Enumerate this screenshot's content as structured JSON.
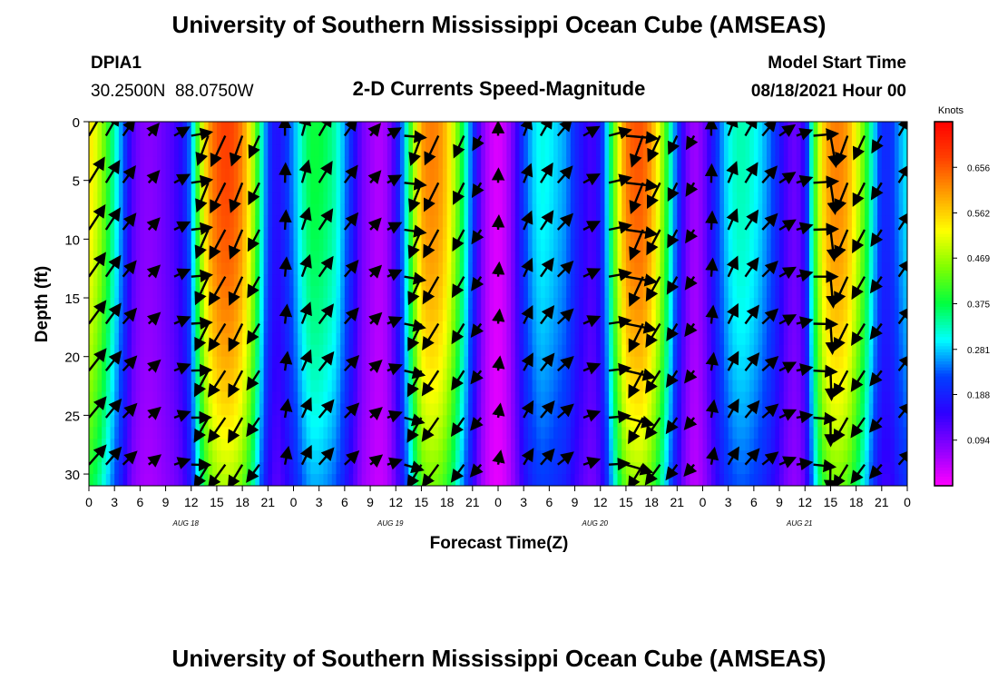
{
  "header": {
    "title": "University of Southern Mississippi Ocean Cube (AMSEAS)",
    "station_id": "DPIA1",
    "station_coords": "30.2500N  88.0750W",
    "product": "2-D Currents Speed-Magnitude",
    "model_start_label": "Model Start Time",
    "model_start_value": "08/18/2021 Hour 00"
  },
  "footer": {
    "title": "University of Southern Mississippi Ocean Cube (AMSEAS)"
  },
  "chart_data": {
    "type": "heatmap",
    "title": "2-D Currents Speed-Magnitude",
    "xlabel": "Forecast Time(Z)",
    "ylabel": "Depth (ft)",
    "x_tick_labels": [
      "0",
      "3",
      "6",
      "9",
      "12",
      "15",
      "18",
      "21",
      "0",
      "3",
      "6",
      "9",
      "12",
      "15",
      "18",
      "21",
      "0",
      "3",
      "6",
      "9",
      "12",
      "15",
      "18",
      "21",
      "0",
      "3",
      "6",
      "9",
      "12",
      "15",
      "18",
      "21",
      "0"
    ],
    "x_range_hours": [
      0,
      96
    ],
    "date_labels": [
      "AUG 18",
      "AUG 19",
      "AUG 20",
      "AUG 21"
    ],
    "y_ticks": [
      0,
      5,
      10,
      15,
      20,
      25,
      30
    ],
    "ylim": [
      0,
      31
    ],
    "y_inverted": true,
    "colorbar": {
      "unit": "Knots",
      "tick_labels": [
        "0.656",
        "0.562",
        "0.469",
        "0.375",
        "0.281",
        "0.188",
        "0.094"
      ],
      "ticks": [
        0.656,
        0.562,
        0.469,
        0.375,
        0.281,
        0.188,
        0.094
      ],
      "range": [
        0.0,
        0.75
      ],
      "colors": [
        "#ff00ff",
        "#8f00ff",
        "#2d00ff",
        "#0040ff",
        "#00ffff",
        "#00ff40",
        "#80ff00",
        "#ffff00",
        "#ffa000",
        "#ff4000",
        "#ff0000"
      ]
    },
    "speed_profile": {
      "hours": [
        0,
        1,
        2,
        3,
        4,
        5,
        6,
        7,
        8,
        9,
        10,
        11,
        12,
        13,
        14,
        15,
        16,
        17,
        18,
        19,
        20,
        21,
        22,
        23,
        24,
        25,
        26,
        27,
        28,
        29,
        30,
        31,
        32,
        33,
        34,
        35,
        36,
        37,
        38,
        39,
        40,
        41,
        42,
        43,
        44,
        45,
        46,
        47,
        48,
        49,
        50,
        51,
        52,
        53,
        54,
        55,
        56,
        57,
        58,
        59,
        60,
        61,
        62,
        63,
        64,
        65,
        66,
        67,
        68,
        69,
        70,
        71,
        72,
        73,
        74,
        75,
        76,
        77,
        78,
        79,
        80,
        81,
        82,
        83,
        84,
        85,
        86,
        87,
        88,
        89,
        90,
        91,
        92,
        93,
        94,
        95,
        96
      ],
      "surface_knots": [
        0.55,
        0.5,
        0.42,
        0.33,
        0.24,
        0.13,
        0.09,
        0.08,
        0.09,
        0.11,
        0.13,
        0.17,
        0.26,
        0.46,
        0.6,
        0.66,
        0.68,
        0.67,
        0.62,
        0.52,
        0.36,
        0.22,
        0.16,
        0.2,
        0.26,
        0.33,
        0.38,
        0.38,
        0.36,
        0.33,
        0.26,
        0.18,
        0.1,
        0.07,
        0.05,
        0.07,
        0.15,
        0.28,
        0.45,
        0.6,
        0.63,
        0.62,
        0.57,
        0.47,
        0.35,
        0.22,
        0.1,
        0.04,
        0.02,
        0.05,
        0.12,
        0.22,
        0.28,
        0.31,
        0.3,
        0.28,
        0.26,
        0.2,
        0.16,
        0.13,
        0.18,
        0.32,
        0.5,
        0.63,
        0.66,
        0.66,
        0.6,
        0.5,
        0.36,
        0.22,
        0.11,
        0.06,
        0.09,
        0.16,
        0.24,
        0.3,
        0.33,
        0.33,
        0.31,
        0.28,
        0.24,
        0.18,
        0.12,
        0.1,
        0.16,
        0.38,
        0.55,
        0.62,
        0.63,
        0.6,
        0.52,
        0.42,
        0.3,
        0.2,
        0.2,
        0.26,
        0.3
      ],
      "bottom_factor": 0.7
    },
    "vectors": {
      "hours": [
        0,
        2,
        4,
        7,
        10,
        12,
        14,
        16,
        18,
        20,
        23,
        25,
        27,
        30,
        33,
        35,
        37,
        39,
        41,
        44,
        46,
        48,
        51,
        53,
        55,
        58,
        61,
        63,
        65,
        67,
        69,
        71,
        73,
        75,
        77,
        79,
        81,
        83,
        85,
        87,
        89,
        91,
        93,
        95
      ],
      "depths_ft": [
        0,
        4,
        8,
        12,
        16,
        20,
        24,
        28
      ],
      "direction_deg_surface": [
        30,
        30,
        35,
        40,
        60,
        80,
        200,
        205,
        200,
        205,
        0,
        15,
        30,
        35,
        40,
        60,
        95,
        200,
        205,
        205,
        210,
        0,
        20,
        30,
        40,
        60,
        75,
        95,
        200,
        205,
        205,
        210,
        0,
        20,
        30,
        40,
        55,
        70,
        85,
        170,
        200,
        205,
        210,
        30
      ],
      "units": "knots"
    }
  }
}
